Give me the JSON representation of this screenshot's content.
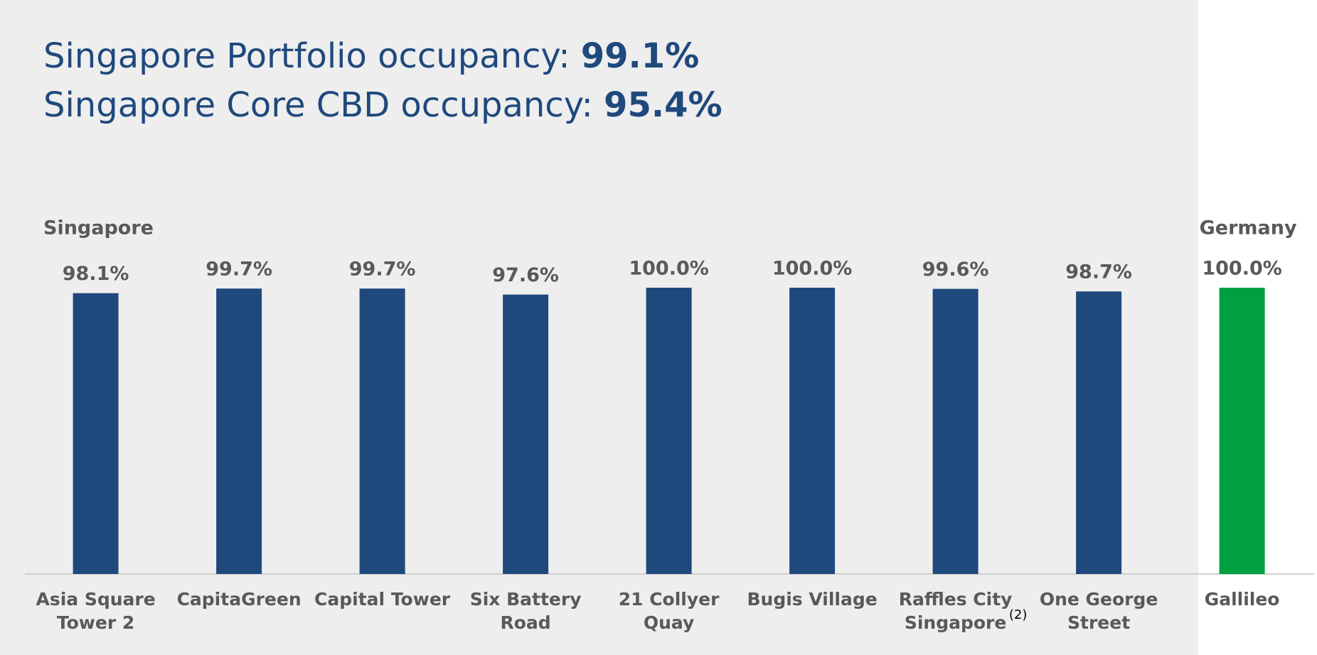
{
  "chart_data": {
    "type": "bar",
    "headlines": [
      {
        "label": "Singapore Portfolio occupancy:",
        "value": "99.1%"
      },
      {
        "label": "Singapore Core CBD occupancy:",
        "value": "95.4%"
      }
    ],
    "ylim": [
      0,
      100
    ],
    "groups": [
      {
        "name": "Singapore",
        "color": "#1f497d",
        "categories": [
          [
            "Asia Square",
            "Tower 2"
          ],
          [
            "CapitaGreen"
          ],
          [
            "Capital Tower"
          ],
          [
            "Six Battery",
            "Road"
          ],
          [
            "21 Collyer",
            "Quay"
          ],
          [
            "Bugis Village"
          ],
          [
            "Raffles City",
            "Singapore"
          ],
          [
            "One George",
            "Street"
          ]
        ],
        "values": [
          98.1,
          99.7,
          99.7,
          97.6,
          100.0,
          100.0,
          99.6,
          98.7
        ],
        "value_labels": [
          "98.1%",
          "99.7%",
          "99.7%",
          "97.6%",
          "100.0%",
          "100.0%",
          "99.6%",
          "98.7%"
        ],
        "notes": [
          null,
          null,
          null,
          null,
          null,
          null,
          "(2)",
          null
        ]
      },
      {
        "name": "Germany",
        "color": "#00a040",
        "categories": [
          [
            "Gallileo"
          ]
        ],
        "values": [
          100.0
        ],
        "value_labels": [
          "100.0%"
        ],
        "notes": [
          null
        ]
      }
    ]
  }
}
